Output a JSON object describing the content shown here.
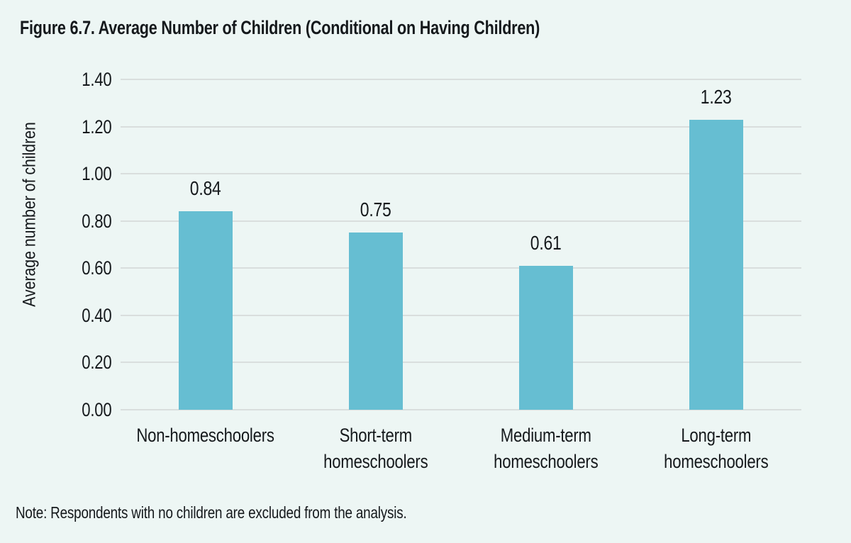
{
  "title": "Figure 6.7. Average Number of Children (Conditional on Having Children)",
  "note": "Note: Respondents with no children are excluded from the analysis.",
  "colors": {
    "background": "#edf6f4",
    "bar": "#66bed2",
    "gridline": "#d9dedd",
    "text": "#15191c"
  },
  "chart_data": {
    "type": "bar",
    "title": "Figure 6.7. Average Number of Children (Conditional on Having Children)",
    "categories": [
      "Non-homeschoolers",
      "Short-term\nhomeschoolers",
      "Medium-term\nhomeschoolers",
      "Long-term\nhomeschoolers"
    ],
    "values": [
      0.84,
      0.75,
      0.61,
      1.23
    ],
    "value_labels": [
      "0.84",
      "0.75",
      "0.61",
      "1.23"
    ],
    "xlabel": "",
    "ylabel": "Average number of children",
    "ylim": [
      0,
      1.4
    ],
    "ytick_labels": [
      "0.00",
      "0.20",
      "0.40",
      "0.60",
      "0.80",
      "1.00",
      "1.20",
      "1.40"
    ],
    "ytick_values": [
      0.0,
      0.2,
      0.4,
      0.6,
      0.8,
      1.0,
      1.2,
      1.4
    ],
    "grid": "horizontal",
    "legend": "none"
  }
}
